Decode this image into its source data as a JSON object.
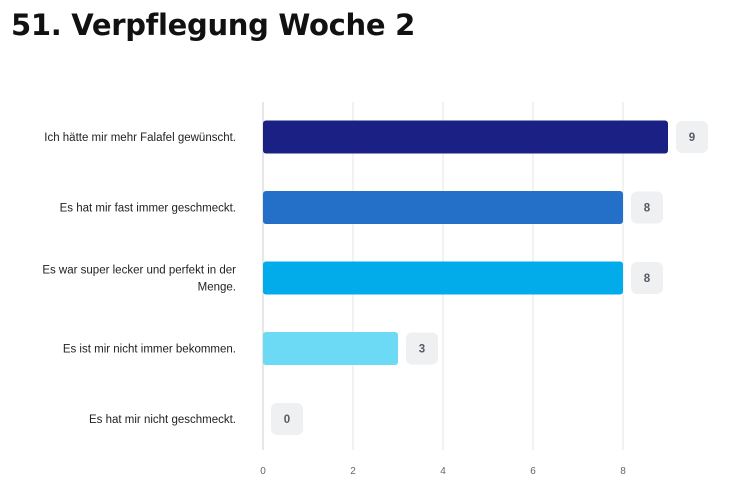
{
  "header": {
    "title": "51. Verpflegung Woche 2"
  },
  "chart_data": {
    "type": "bar",
    "orientation": "horizontal",
    "categories": [
      [
        "Ich hätte mir mehr Falafel gewünscht."
      ],
      [
        "Es hat mir fast immer geschmeckt."
      ],
      [
        "Es war super lecker und perfekt in der",
        "Menge."
      ],
      [
        "Es ist mir nicht immer bekommen."
      ],
      [
        "Es hat mir nicht geschmeckt."
      ]
    ],
    "values": [
      9,
      8,
      8,
      3,
      0
    ],
    "colors": [
      "#1b2085",
      "#2470c8",
      "#02aceb",
      "#6cdaf5",
      "#cccccc"
    ],
    "xlim": [
      0,
      10
    ],
    "xticks": [
      0,
      2,
      4,
      6,
      8
    ],
    "grid": true,
    "data_labels": true
  }
}
